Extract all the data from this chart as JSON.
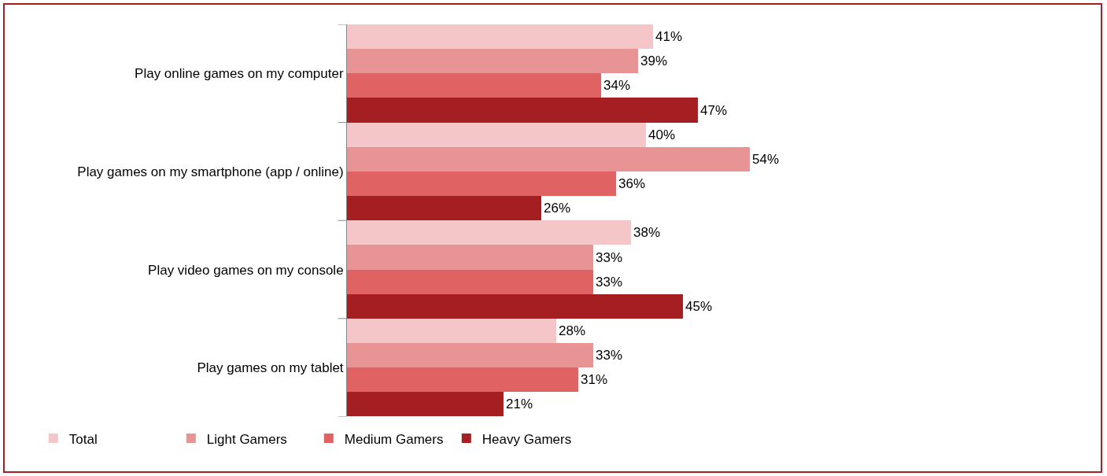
{
  "chart_data": {
    "type": "bar",
    "orientation": "horizontal",
    "categories": [
      "Play online games on my computer",
      "Play games on my smartphone (app / online)",
      "Play video games on my console",
      "Play games on my tablet"
    ],
    "series": [
      {
        "name": "Total",
        "color": "#f4c6c8",
        "values": [
          41,
          40,
          38,
          28
        ],
        "value_labels": [
          "41%",
          "40%",
          "38%",
          "28%"
        ]
      },
      {
        "name": "Light Gamers",
        "color": "#e89494",
        "values": [
          39,
          54,
          33,
          33
        ],
        "value_labels": [
          "39%",
          "54%",
          "33%",
          "33%"
        ]
      },
      {
        "name": "Medium Gamers",
        "color": "#e06262",
        "values": [
          34,
          36,
          33,
          31
        ],
        "value_labels": [
          "34%",
          "36%",
          "33%",
          "31%"
        ]
      },
      {
        "name": "Heavy Gamers",
        "color": "#a51f22",
        "values": [
          47,
          26,
          45,
          21
        ],
        "value_labels": [
          "47%",
          "26%",
          "45%",
          "21%"
        ]
      }
    ],
    "legend": "bottom left",
    "grid": false,
    "tick_labels": "y"
  }
}
